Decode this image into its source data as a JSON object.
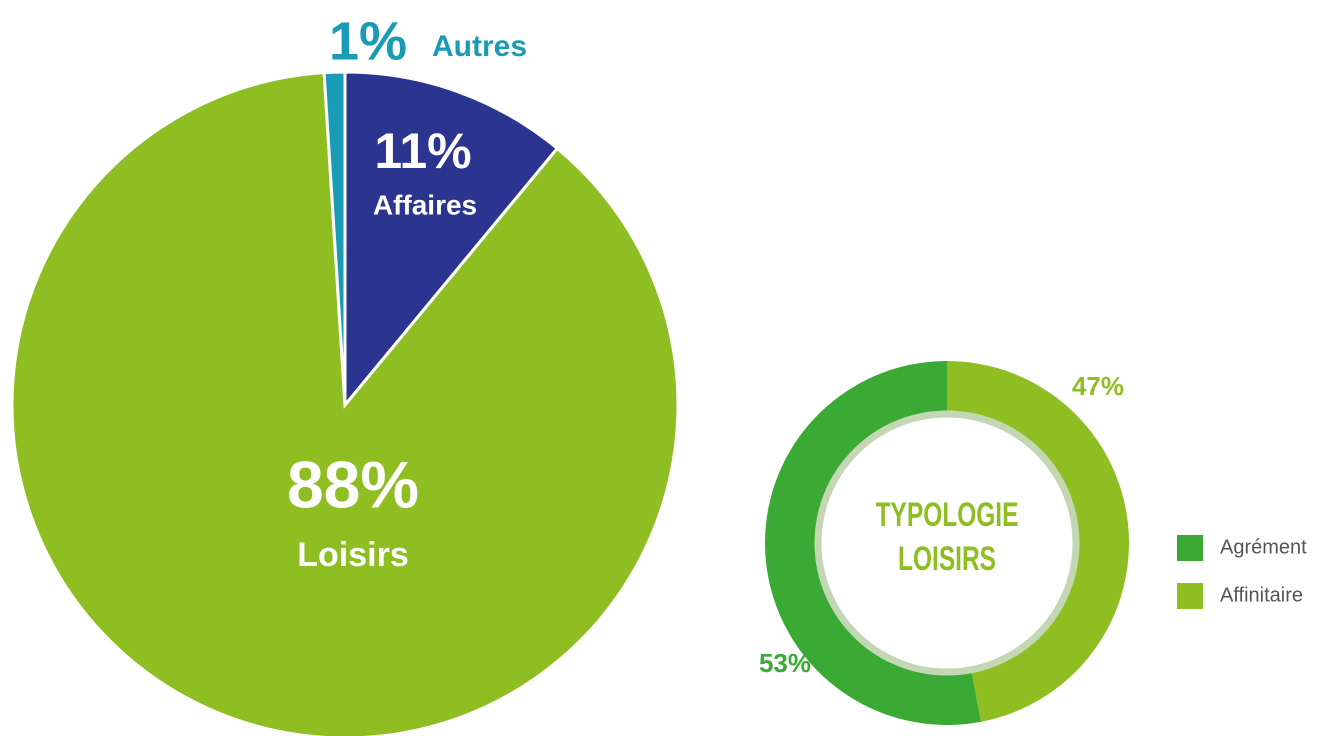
{
  "chart_data": [
    {
      "type": "pie",
      "categories": [
        "Affaires",
        "Loisirs",
        "Autres"
      ],
      "values": [
        11,
        88,
        1
      ],
      "value_labels": [
        "11%",
        "88%",
        "1%"
      ],
      "colors": [
        "#2b3590",
        "#8fbe22",
        "#1a9bb5"
      ]
    },
    {
      "type": "donut",
      "title": "TYPOLOGIE LOISIRS",
      "categories": [
        "Agrément",
        "Affinitaire"
      ],
      "values": [
        53,
        47
      ],
      "value_labels": [
        "53%",
        "47%"
      ],
      "colors": [
        "#3aaa35",
        "#8fbe22"
      ],
      "legend": true
    }
  ]
}
